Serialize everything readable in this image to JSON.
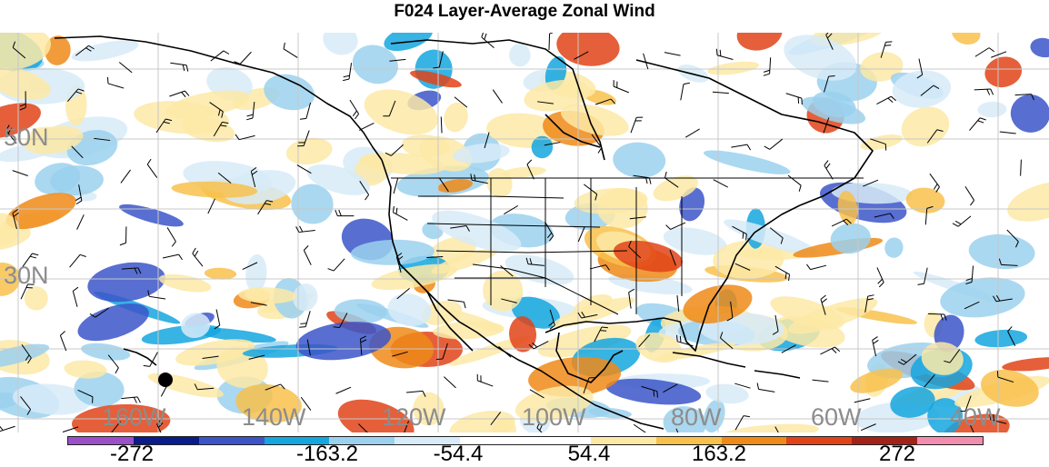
{
  "title": "F024 Layer-Average Zonal Wind",
  "latitude_labels": [
    "50N",
    "30N"
  ],
  "longitude_labels": [
    "160W",
    "140W",
    "120W",
    "100W",
    "80W",
    "60W",
    "40W"
  ],
  "colorbar": {
    "colors": [
      "#9b4fc9",
      "#0a1b8a",
      "#3b55c9",
      "#14a6df",
      "#9bd1ef",
      "#d7ebf8",
      "#ffffff",
      "#ffffff",
      "#fde9a6",
      "#f8c14b",
      "#ef8a18",
      "#e04318",
      "#a32218",
      "#f38db0"
    ],
    "tick_labels": [
      "-272",
      "-163.2",
      "-54.4",
      "54.4",
      "163.2",
      "272"
    ]
  }
}
